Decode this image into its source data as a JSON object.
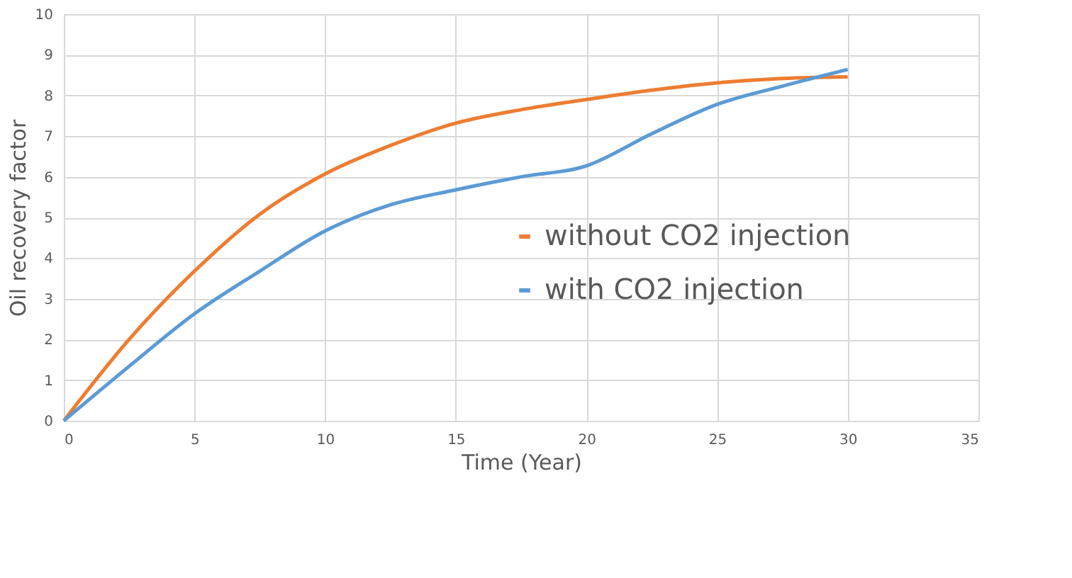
{
  "chart_data": {
    "type": "line",
    "xlabel": "Time (Year)",
    "ylabel": "Oil recovery factor",
    "x": [
      0,
      2.5,
      5,
      7.5,
      10,
      12.5,
      15,
      17.5,
      20,
      22.5,
      25,
      27.5,
      30
    ],
    "series": [
      {
        "name": "without CO2 injection",
        "color": "#ed7d31",
        "values": [
          0,
          2.0,
          3.68,
          5.08,
          6.07,
          6.77,
          7.32,
          7.65,
          7.9,
          8.13,
          8.31,
          8.42,
          8.46
        ]
      },
      {
        "name": "with CO2 injection",
        "color": "#5b9bd5",
        "values": [
          0,
          1.34,
          2.63,
          3.68,
          4.67,
          5.31,
          5.68,
          6.0,
          6.27,
          7.06,
          7.78,
          8.23,
          8.64
        ]
      }
    ],
    "xlim": [
      0,
      35
    ],
    "xticks": [
      0,
      5,
      10,
      15,
      20,
      25,
      30,
      35
    ],
    "ylim": [
      0,
      10
    ],
    "yticks": [
      0,
      1,
      2,
      3,
      4,
      5,
      6,
      7,
      8,
      9,
      10
    ],
    "grid": true,
    "legend": "bottom right",
    "marker": "none",
    "line_style": "solid"
  }
}
